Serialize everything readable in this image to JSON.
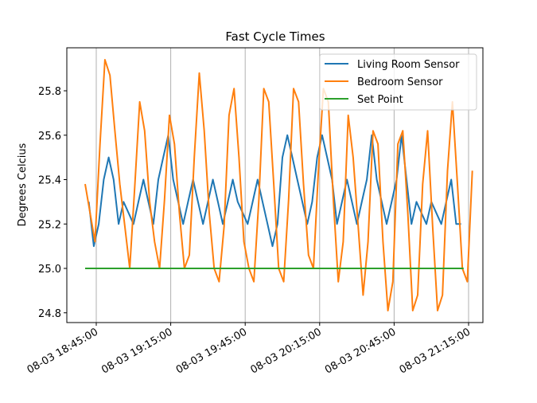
{
  "chart_data": {
    "type": "line",
    "title": "Fast Cycle Times",
    "xlabel": "",
    "ylabel": "Degrees Celcius",
    "ylim": [
      24.77,
      25.99
    ],
    "yticks": [
      24.8,
      25.0,
      25.2,
      25.4,
      25.6,
      25.8
    ],
    "ytick_labels": [
      "24.8",
      "25.0",
      "25.2",
      "25.4",
      "25.6",
      "25.8"
    ],
    "xtick_labels": [
      "08-03 18:45:00",
      "08-03 19:15:00",
      "08-03 19:45:00",
      "08-03 20:15:00",
      "08-03 20:45:00",
      "08-03 21:15:00"
    ],
    "xtick_minutes": [
      0,
      30,
      60,
      90,
      120,
      150
    ],
    "x_range_minutes": [
      -11.7,
      155.8
    ],
    "grid": "vertical",
    "legend_position": "upper right",
    "sample_interval_minutes": 2,
    "series": [
      {
        "name": "Living Room Sensor",
        "color": "#1f77b4",
        "start_minute": -3,
        "values": [
          25.3,
          25.1,
          25.2,
          25.4,
          25.5,
          25.4,
          25.2,
          25.3,
          25.25,
          25.2,
          25.3,
          25.4,
          25.3,
          25.2,
          25.4,
          25.5,
          25.6,
          25.4,
          25.3,
          25.2,
          25.3,
          25.4,
          25.3,
          25.2,
          25.3,
          25.4,
          25.3,
          25.2,
          25.3,
          25.4,
          25.3,
          25.25,
          25.2,
          25.3,
          25.4,
          25.3,
          25.2,
          25.1,
          25.2,
          25.5,
          25.6,
          25.5,
          25.4,
          25.3,
          25.2,
          25.3,
          25.5,
          25.6,
          25.5,
          25.4,
          25.2,
          25.3,
          25.4,
          25.3,
          25.2,
          25.3,
          25.4,
          25.6,
          25.4,
          25.3,
          25.2,
          25.3,
          25.4,
          25.6,
          25.4,
          25.2,
          25.3,
          25.25,
          25.2,
          25.3,
          25.25,
          25.2,
          25.3,
          25.4,
          25.2,
          25.2
        ]
      },
      {
        "name": "Bedroom Sensor",
        "color": "#ff7f0e",
        "start_minute": -4.5,
        "values": [
          25.38,
          25.25,
          25.12,
          25.56,
          25.94,
          25.87,
          25.62,
          25.38,
          25.19,
          25.0,
          25.37,
          25.75,
          25.62,
          25.3,
          25.12,
          25.0,
          25.31,
          25.69,
          25.56,
          25.25,
          25.0,
          25.06,
          25.5,
          25.88,
          25.62,
          25.25,
          25.0,
          24.94,
          25.19,
          25.69,
          25.81,
          25.5,
          25.12,
          25.0,
          24.94,
          25.31,
          25.81,
          25.75,
          25.38,
          25.0,
          24.94,
          25.31,
          25.81,
          25.75,
          25.38,
          25.06,
          25.0,
          25.44,
          25.81,
          25.75,
          25.31,
          24.94,
          25.12,
          25.69,
          25.5,
          25.19,
          24.88,
          25.12,
          25.62,
          25.56,
          25.12,
          24.81,
          24.94,
          25.56,
          25.62,
          25.25,
          24.81,
          24.88,
          25.38,
          25.62,
          25.19,
          24.81,
          24.88,
          25.44,
          25.75,
          25.38,
          25.0,
          24.94,
          25.44
        ]
      },
      {
        "name": "Set Point",
        "color": "#2ca02c",
        "start_minute": -4.5,
        "end_minute": 148,
        "values": [
          25.0,
          25.0
        ]
      }
    ]
  }
}
